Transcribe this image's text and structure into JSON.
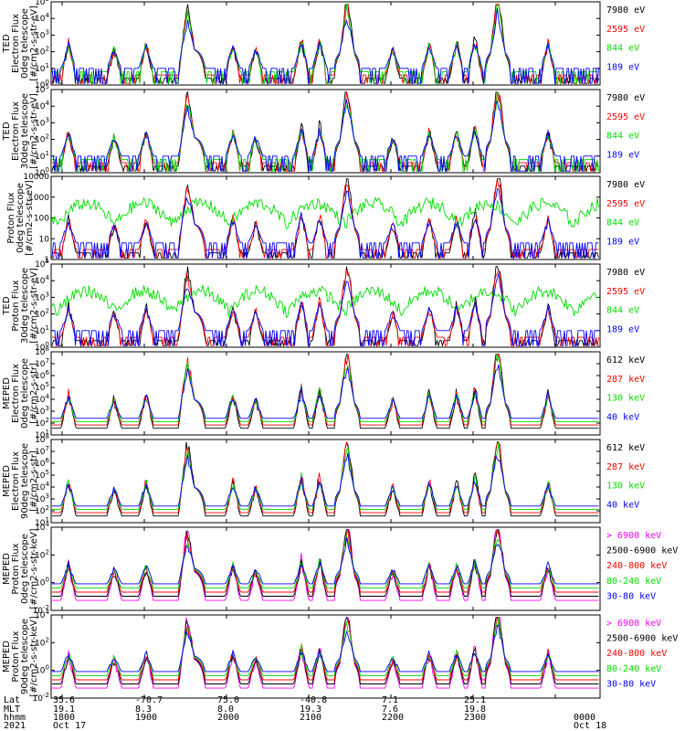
{
  "colors": {
    "black": "#000000",
    "red": "#ff0000",
    "green": "#00dd00",
    "blue": "#0000ff",
    "magenta": "#ff00ff"
  },
  "footer": {
    "row_labels": [
      "Lat",
      "MLT",
      "hhmm",
      "2021"
    ],
    "columns": [
      {
        "lat": "35.6",
        "mlt": "19.1",
        "hhmm": "1800",
        "date": "Oct 17"
      },
      {
        "lat": "-70.7",
        "mlt": "8.3",
        "hhmm": "1900",
        "date": ""
      },
      {
        "lat": "75.0",
        "mlt": "8.0",
        "hhmm": "2000",
        "date": ""
      },
      {
        "lat": "-40.8",
        "mlt": "19.3",
        "hhmm": "2100",
        "date": ""
      },
      {
        "lat": "7.1",
        "mlt": "7.6",
        "hhmm": "2200",
        "date": ""
      },
      {
        "lat": "25.1",
        "mlt": "19.8",
        "hhmm": "2300",
        "date": ""
      },
      {
        "lat": "",
        "mlt": "",
        "hhmm": "0000",
        "date": "Oct 18"
      }
    ]
  },
  "chart_data": [
    {
      "type": "line",
      "ylabel": [
        "TED",
        "Electron Flux",
        "0deg telescope",
        "[#/cm2-s-str-eV]"
      ],
      "yscale": "log",
      "ylim": [
        1,
        100000
      ],
      "ytick_labels": [
        "10^0",
        "10^1",
        "10^2",
        "10^3",
        "10^4",
        "10^5"
      ],
      "series": [
        {
          "name": "7980 eV",
          "color": "black"
        },
        {
          "name": "2595 eV",
          "color": "red"
        },
        {
          "name": "844 eV",
          "color": "green"
        },
        {
          "name": "189 eV",
          "color": "blue"
        }
      ]
    },
    {
      "type": "line",
      "ylabel": [
        "TED",
        "Electron Flux",
        "30deg telescope",
        "[#/cm2-s-str-eV]"
      ],
      "yscale": "log",
      "ylim": [
        1,
        100000
      ],
      "ytick_labels": [
        "10^0",
        "10^1",
        "10^2",
        "10^3",
        "10^4",
        "10^5"
      ],
      "series": [
        {
          "name": "7980 eV",
          "color": "black"
        },
        {
          "name": "2595 eV",
          "color": "red"
        },
        {
          "name": "844 eV",
          "color": "green"
        },
        {
          "name": "189 eV",
          "color": "blue"
        }
      ]
    },
    {
      "type": "line",
      "ylabel": [
        "Proton Flux",
        "0deg telescope",
        "[#/cm2-s-str-eV]"
      ],
      "yscale": "log",
      "ylim": [
        1,
        10000
      ],
      "ytick_labels": [
        "1",
        "10",
        "100",
        "1000",
        "10000"
      ],
      "series": [
        {
          "name": "7980 eV",
          "color": "black"
        },
        {
          "name": "2595 eV",
          "color": "red"
        },
        {
          "name": "844 eV",
          "color": "green"
        },
        {
          "name": "189 eV",
          "color": "blue"
        }
      ]
    },
    {
      "type": "line",
      "ylabel": [
        "TED",
        "Proton Flux",
        "30deg telescope",
        "[#/cm2-s-str-eV]"
      ],
      "yscale": "log",
      "ylim": [
        1,
        100000
      ],
      "ytick_labels": [
        "10^0",
        "10^1",
        "10^2",
        "10^3",
        "10^4",
        "10^5"
      ],
      "series": [
        {
          "name": "7980 eV",
          "color": "black"
        },
        {
          "name": "2595 eV",
          "color": "red"
        },
        {
          "name": "844 eV",
          "color": "green"
        },
        {
          "name": "189 eV",
          "color": "blue"
        }
      ]
    },
    {
      "type": "line",
      "ylabel": [
        "MEPED",
        "Electron Flux",
        "0deg telescope",
        "[#/cm2-s-str]"
      ],
      "yscale": "log",
      "ylim": [
        10,
        100000000
      ],
      "ytick_labels": [
        "10^1",
        "10^2",
        "10^3",
        "10^4",
        "10^5",
        "10^6",
        "10^7",
        "10^8"
      ],
      "series": [
        {
          "name": "612 keV",
          "color": "black"
        },
        {
          "name": "287 keV",
          "color": "red"
        },
        {
          "name": "130 keV",
          "color": "green"
        },
        {
          "name": "40 keV",
          "color": "blue"
        }
      ]
    },
    {
      "type": "line",
      "ylabel": [
        "MEPED",
        "Electron Flux",
        "90deg telescope",
        "[#/cm2-s-str]"
      ],
      "yscale": "log",
      "ylim": [
        10,
        100000000
      ],
      "ytick_labels": [
        "10^1",
        "10^2",
        "10^3",
        "10^4",
        "10^5",
        "10^6",
        "10^7",
        "10^8"
      ],
      "series": [
        {
          "name": "612 keV",
          "color": "black"
        },
        {
          "name": "287 keV",
          "color": "red"
        },
        {
          "name": "130 keV",
          "color": "green"
        },
        {
          "name": "40 keV",
          "color": "blue"
        }
      ]
    },
    {
      "type": "line",
      "ylabel": [
        "MEPED",
        "Proton Flux",
        "0deg telescope",
        "[#/cm2-s-str-keV]"
      ],
      "yscale": "log",
      "ylim": [
        0.01,
        100000
      ],
      "ytick_labels": [
        "10^-2",
        "10^0",
        "10^2",
        "10^4"
      ],
      "series": [
        {
          "name": "> 6900 keV",
          "color": "magenta"
        },
        {
          "name": "2500-6900 keV",
          "color": "black"
        },
        {
          "name": "240-800 keV",
          "color": "red"
        },
        {
          "name": "80-240 keV",
          "color": "green"
        },
        {
          "name": "30-80 keV",
          "color": "blue"
        }
      ]
    },
    {
      "type": "line",
      "ylabel": [
        "MEPED",
        "Proton Flux",
        "90deg telescope",
        "[#/cm2-s-str-keV]"
      ],
      "yscale": "log",
      "ylim": [
        0.01,
        100000
      ],
      "ytick_labels": [
        "10^-2",
        "10^0",
        "10^2",
        "10^4"
      ],
      "series": [
        {
          "name": "> 6900 keV",
          "color": "magenta"
        },
        {
          "name": "2500-6900 keV",
          "color": "black"
        },
        {
          "name": "240-800 keV",
          "color": "red"
        },
        {
          "name": "80-240 keV",
          "color": "green"
        },
        {
          "name": "30-80 keV",
          "color": "blue"
        }
      ]
    }
  ]
}
